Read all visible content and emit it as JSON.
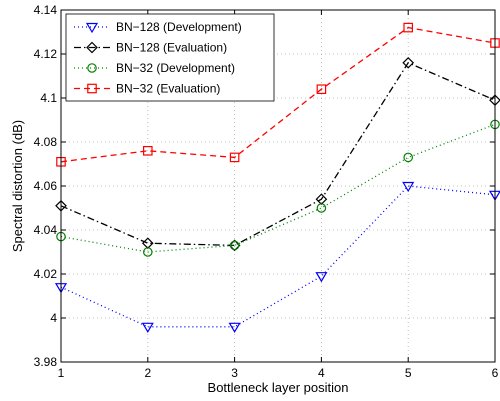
{
  "chart_data": {
    "type": "line",
    "xlabel": "Bottleneck layer position",
    "ylabel": "Spectral distortion (dB)",
    "x": [
      1,
      2,
      3,
      4,
      5,
      6
    ],
    "xlim": [
      1,
      6
    ],
    "ylim": [
      3.98,
      4.14
    ],
    "xticks": [
      "1",
      "2",
      "3",
      "4",
      "5",
      "6"
    ],
    "yticks": [
      "3.98",
      "4",
      "4.02",
      "4.04",
      "4.06",
      "4.08",
      "4.1",
      "4.12",
      "4.14"
    ],
    "grid": true,
    "legend_position": "top-left",
    "series": [
      {
        "name": "BN−128 (Development)",
        "color": "#0000ff",
        "line": "dotted",
        "marker": "triangle-down",
        "values": [
          4.014,
          3.996,
          3.996,
          4.019,
          4.06,
          4.056
        ]
      },
      {
        "name": "BN−128 (Evaluation)",
        "color": "#000000",
        "line": "dash-dot",
        "marker": "diamond",
        "values": [
          4.051,
          4.034,
          4.033,
          4.054,
          4.116,
          4.099
        ]
      },
      {
        "name": "BN−32 (Development)",
        "color": "#008000",
        "line": "dotted",
        "marker": "circle",
        "values": [
          4.037,
          4.03,
          4.033,
          4.05,
          4.073,
          4.088
        ]
      },
      {
        "name": "BN−32 (Evaluation)",
        "color": "#ff0000",
        "line": "dashed",
        "marker": "square",
        "values": [
          4.071,
          4.076,
          4.073,
          4.104,
          4.132,
          4.125
        ]
      }
    ]
  }
}
